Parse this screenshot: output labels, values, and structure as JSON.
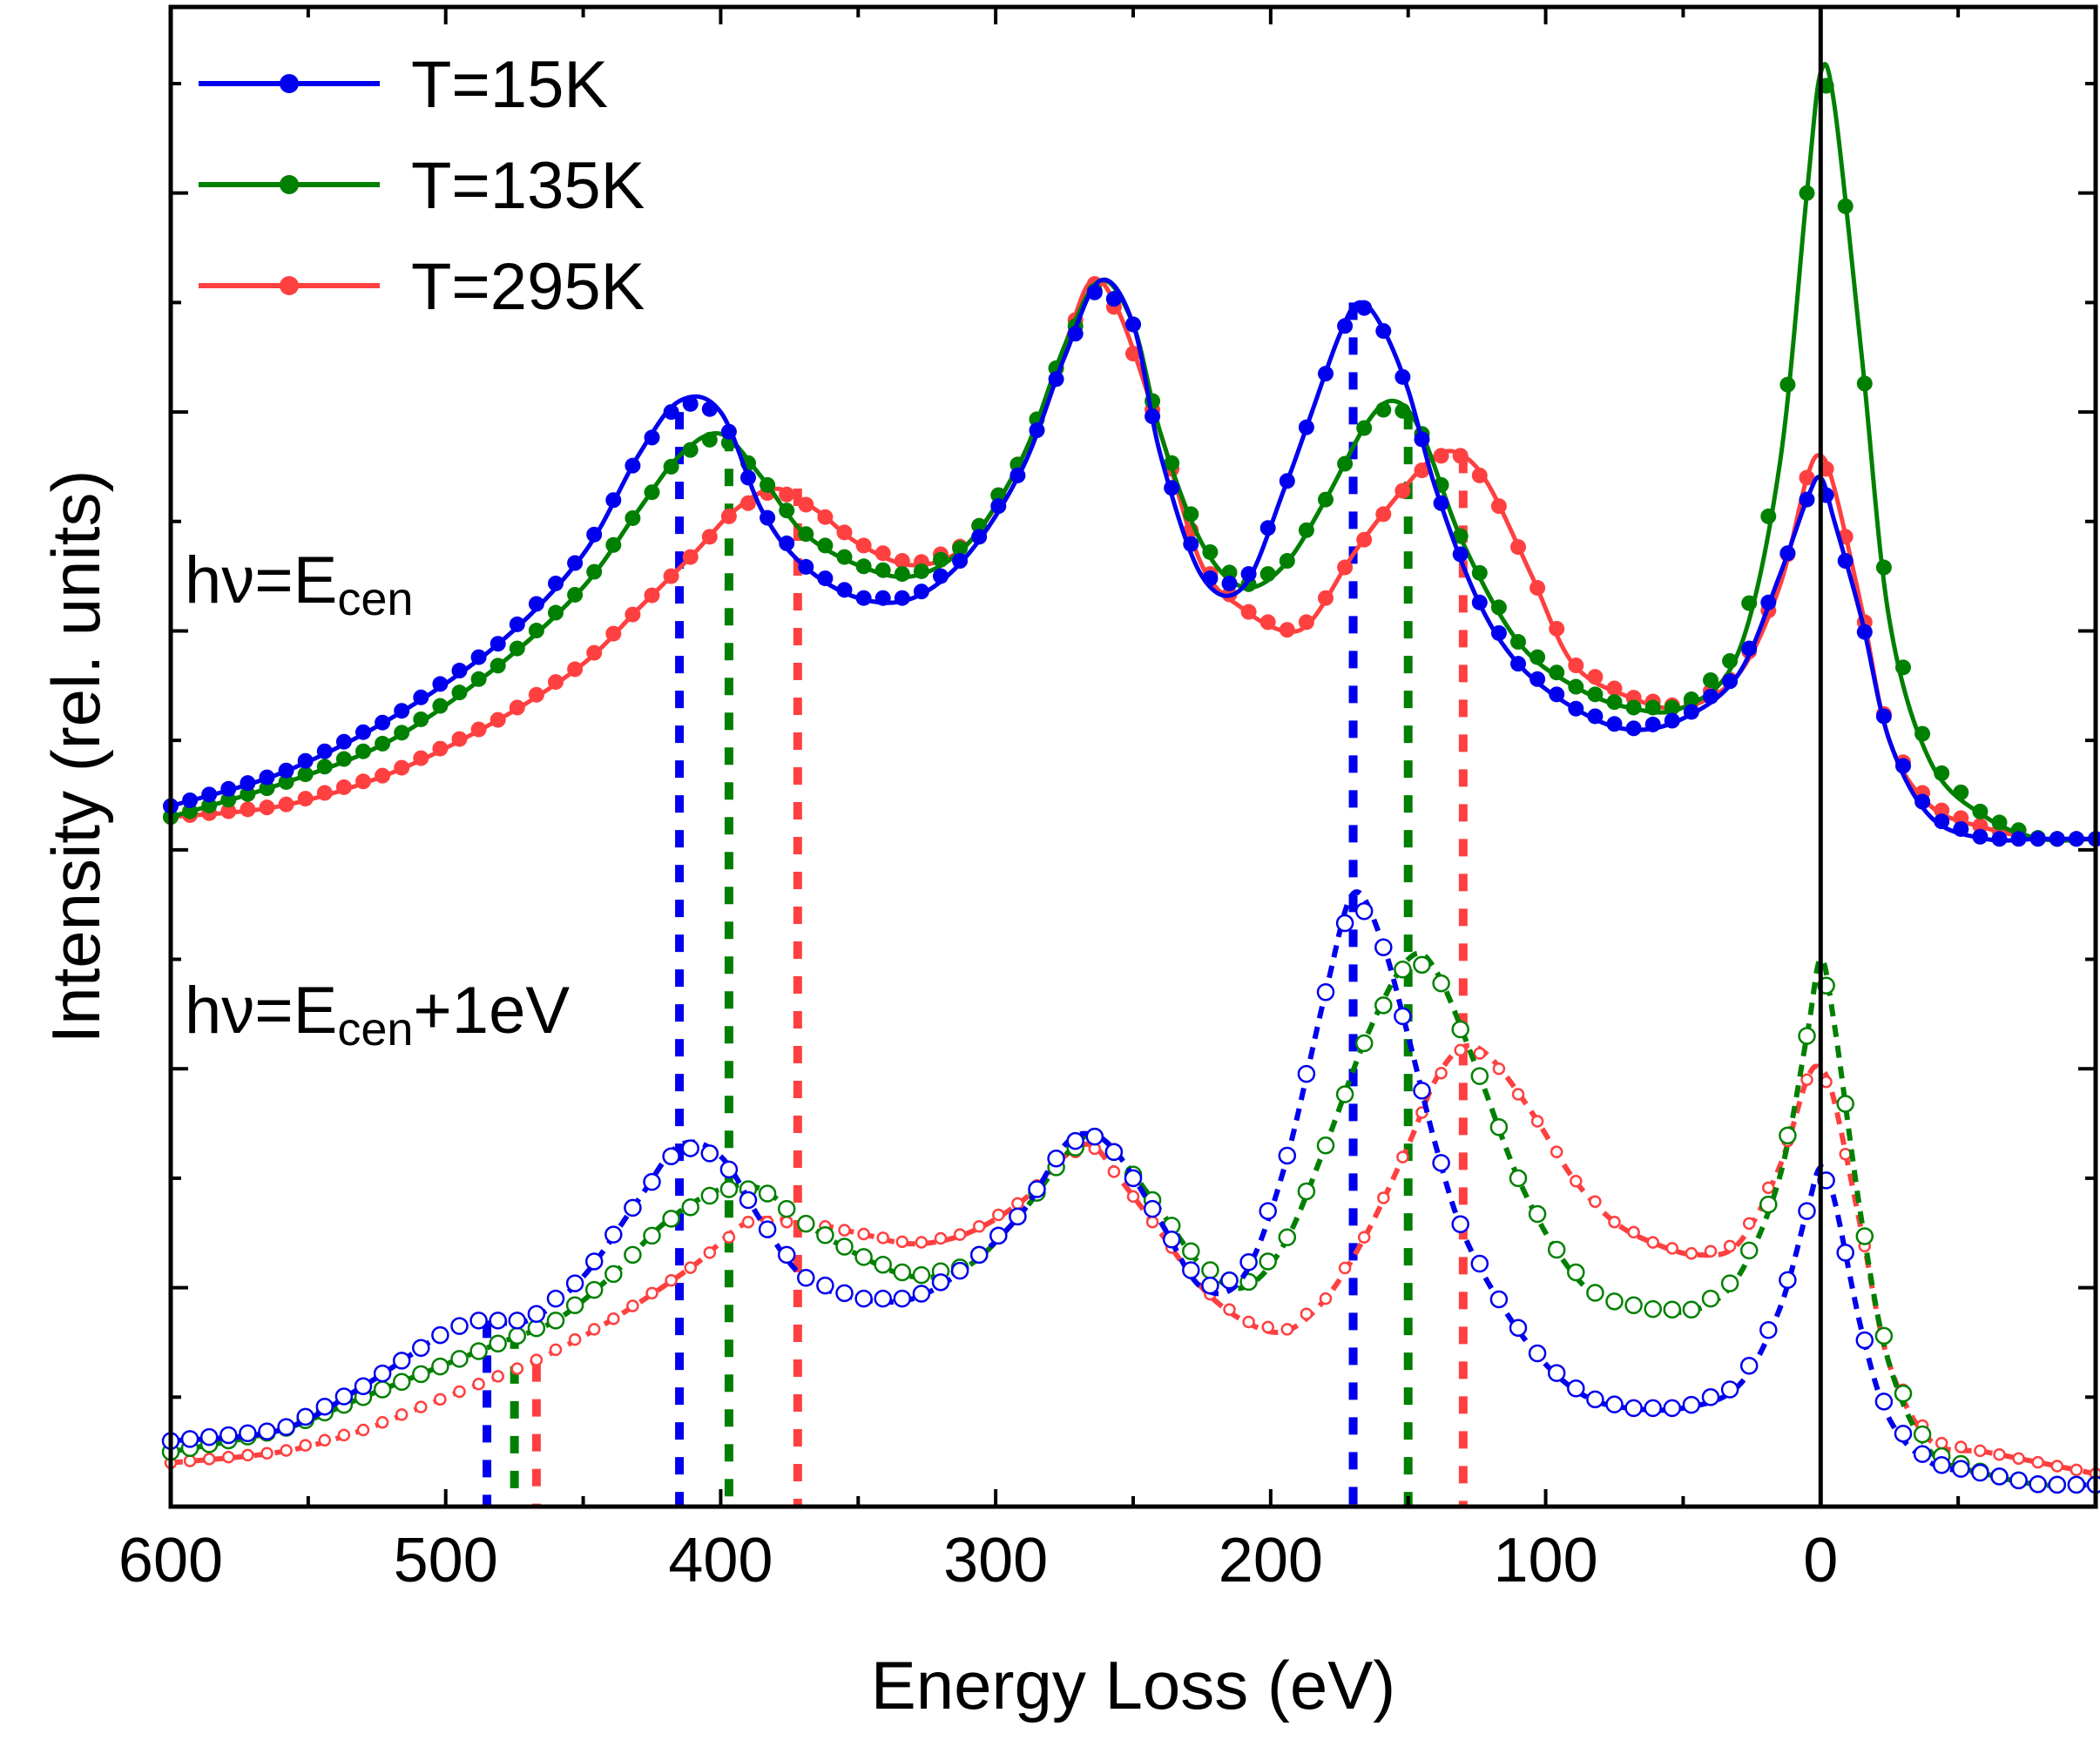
{
  "chart_data": {
    "type": "line",
    "xlabel": "Energy Loss (eV)",
    "ylabel": "Intensity (rel. units)",
    "x_reversed": true,
    "xlim": [
      600,
      -100
    ],
    "ylim": [
      0,
      13.7
    ],
    "xticks": [
      600,
      500,
      400,
      300,
      200,
      100,
      0
    ],
    "y_tick_labels_shown": false,
    "legend": {
      "position": "top-left",
      "marker": "filled circle with line"
    },
    "colors": {
      "T=15K": "#0000ee",
      "T=135K": "#008000",
      "T=295K": "#ff4040"
    },
    "reference_line": {
      "x": 0,
      "color": "#000000"
    },
    "annotations": [
      {
        "base": "hν=E",
        "sub": "cen",
        "suffix": ""
      },
      {
        "base": "hν=E",
        "sub": "cen",
        "suffix": "+1eV"
      }
    ],
    "series": [
      {
        "name": "T=15K",
        "group": "hν=E_cen",
        "marker": "filled",
        "x": [
          600,
          560,
          520,
          480,
          450,
          430,
          415,
          400,
          385,
          370,
          350,
          330,
          310,
          290,
          275,
          262,
          250,
          240,
          225,
          210,
          195,
          185,
          175,
          168,
          160,
          150,
          140,
          125,
          110,
          90,
          70,
          50,
          30,
          15,
          5,
          0,
          -5,
          -15,
          -25,
          -40,
          -60,
          -80,
          -100
        ],
        "y": [
          6.4,
          6.7,
          7.2,
          7.9,
          8.7,
          9.6,
          10.1,
          10.0,
          9.1,
          8.6,
          8.3,
          8.3,
          8.7,
          9.5,
          10.5,
          11.2,
          10.8,
          9.6,
          8.5,
          8.4,
          9.3,
          10.0,
          10.7,
          11.0,
          10.8,
          10.2,
          9.3,
          8.3,
          7.7,
          7.3,
          7.1,
          7.2,
          7.6,
          8.5,
          9.2,
          9.4,
          9.0,
          8.1,
          7.0,
          6.3,
          6.1,
          6.1,
          6.1
        ]
      },
      {
        "name": "T=135K",
        "group": "hν=E_cen",
        "marker": "filled",
        "x": [
          600,
          560,
          520,
          480,
          450,
          430,
          415,
          400,
          385,
          370,
          350,
          330,
          310,
          290,
          275,
          262,
          250,
          240,
          225,
          210,
          195,
          180,
          165,
          155,
          145,
          130,
          110,
          90,
          70,
          50,
          30,
          15,
          5,
          0,
          -5,
          -15,
          -25,
          -40,
          -60,
          -80,
          -100
        ],
        "y": [
          6.3,
          6.6,
          7.0,
          7.7,
          8.4,
          9.1,
          9.6,
          9.8,
          9.4,
          8.9,
          8.6,
          8.5,
          8.8,
          9.6,
          10.6,
          11.2,
          10.8,
          9.8,
          8.8,
          8.4,
          8.6,
          9.2,
          9.9,
          10.1,
          9.8,
          8.8,
          7.9,
          7.5,
          7.3,
          7.3,
          7.8,
          9.5,
          12.0,
          13.1,
          12.8,
          10.5,
          8.1,
          6.8,
          6.3,
          6.1,
          6.1
        ]
      },
      {
        "name": "T=295K",
        "group": "hν=E_cen",
        "marker": "filled",
        "x": [
          600,
          560,
          520,
          480,
          450,
          430,
          410,
          395,
          380,
          365,
          350,
          330,
          310,
          290,
          275,
          265,
          255,
          240,
          225,
          210,
          195,
          185,
          170,
          155,
          140,
          130,
          120,
          105,
          90,
          70,
          50,
          30,
          15,
          5,
          0,
          -5,
          -15,
          -25,
          -40,
          -60,
          -80,
          -100
        ],
        "y": [
          6.3,
          6.4,
          6.7,
          7.2,
          7.7,
          8.2,
          8.7,
          9.1,
          9.3,
          9.1,
          8.8,
          8.6,
          8.8,
          9.6,
          10.6,
          11.2,
          10.9,
          9.8,
          8.6,
          8.2,
          8.0,
          8.1,
          8.7,
          9.2,
          9.6,
          9.6,
          9.3,
          8.5,
          7.7,
          7.4,
          7.3,
          7.6,
          8.4,
          9.4,
          9.6,
          9.3,
          8.2,
          7.0,
          6.4,
          6.2,
          6.1,
          6.1
        ]
      },
      {
        "name": "T=15K",
        "group": "hν=E_cen+1eV",
        "marker": "open",
        "x": [
          600,
          560,
          530,
          500,
          490,
          470,
          450,
          430,
          415,
          400,
          385,
          370,
          350,
          330,
          310,
          290,
          275,
          265,
          255,
          240,
          225,
          210,
          195,
          180,
          170,
          160,
          150,
          140,
          130,
          115,
          100,
          85,
          70,
          50,
          30,
          15,
          5,
          0,
          -5,
          -15,
          -25,
          -40,
          -60,
          -80,
          -100
        ],
        "y": [
          0.6,
          0.7,
          1.1,
          1.6,
          1.7,
          1.7,
          2.1,
          2.8,
          3.3,
          3.2,
          2.6,
          2.1,
          1.9,
          1.9,
          2.2,
          2.7,
          3.3,
          3.4,
          3.2,
          2.6,
          2.0,
          2.1,
          3.1,
          4.7,
          5.6,
          5.2,
          4.3,
          3.3,
          2.5,
          1.8,
          1.3,
          1.0,
          0.9,
          0.9,
          1.1,
          1.8,
          2.7,
          3.1,
          2.8,
          1.6,
          0.8,
          0.4,
          0.3,
          0.2,
          0.2
        ]
      },
      {
        "name": "T=135K",
        "group": "hν=E_cen+1eV",
        "marker": "open",
        "x": [
          600,
          560,
          530,
          500,
          480,
          460,
          440,
          420,
          400,
          385,
          370,
          350,
          330,
          310,
          290,
          275,
          265,
          255,
          240,
          225,
          210,
          195,
          180,
          165,
          150,
          140,
          125,
          110,
          95,
          80,
          60,
          45,
          30,
          15,
          5,
          0,
          -5,
          -15,
          -25,
          -40,
          -60,
          -80,
          -100
        ],
        "y": [
          0.5,
          0.7,
          1.0,
          1.3,
          1.5,
          1.7,
          2.1,
          2.6,
          2.9,
          2.9,
          2.6,
          2.3,
          2.1,
          2.2,
          2.7,
          3.2,
          3.4,
          3.2,
          2.7,
          2.2,
          2.0,
          2.4,
          3.3,
          4.3,
          5.0,
          4.9,
          4.0,
          3.0,
          2.3,
          1.9,
          1.8,
          1.8,
          2.1,
          3.0,
          4.3,
          5.0,
          4.4,
          2.6,
          1.3,
          0.5,
          0.3,
          0.2,
          0.2
        ]
      },
      {
        "name": "T=295K",
        "group": "hν=E_cen+1eV",
        "marker": "open",
        "x": [
          600,
          560,
          530,
          500,
          470,
          440,
          410,
          390,
          370,
          350,
          330,
          310,
          290,
          275,
          265,
          255,
          240,
          225,
          210,
          195,
          180,
          165,
          150,
          140,
          130,
          120,
          105,
          90,
          75,
          60,
          45,
          30,
          15,
          5,
          0,
          -5,
          -15,
          -25,
          -40,
          -60,
          -80,
          -100
        ],
        "y": [
          0.4,
          0.5,
          0.7,
          1.0,
          1.3,
          1.7,
          2.2,
          2.6,
          2.6,
          2.5,
          2.4,
          2.5,
          2.8,
          3.2,
          3.3,
          3.0,
          2.5,
          2.0,
          1.7,
          1.6,
          1.9,
          2.5,
          3.3,
          3.9,
          4.2,
          4.1,
          3.6,
          3.0,
          2.6,
          2.4,
          2.3,
          2.4,
          3.1,
          3.9,
          4.0,
          3.7,
          2.5,
          1.3,
          0.6,
          0.5,
          0.4,
          0.3
        ]
      }
    ],
    "peak_markers": [
      {
        "series": "T=15K",
        "x": 415,
        "y_top": 10.0
      },
      {
        "series": "T=15K",
        "x": 170,
        "y_top": 11.0
      },
      {
        "series": "T=15K",
        "x": 485,
        "y_top": 1.7
      },
      {
        "series": "T=135K",
        "x": 397,
        "y_top": 9.8
      },
      {
        "series": "T=135K",
        "x": 150,
        "y_top": 10.0
      },
      {
        "series": "T=135K",
        "x": 475,
        "y_top": 1.6
      },
      {
        "series": "T=295K",
        "x": 372,
        "y_top": 9.3
      },
      {
        "series": "T=295K",
        "x": 130,
        "y_top": 9.6
      },
      {
        "series": "T=295K",
        "x": 467,
        "y_top": 1.3
      }
    ]
  }
}
